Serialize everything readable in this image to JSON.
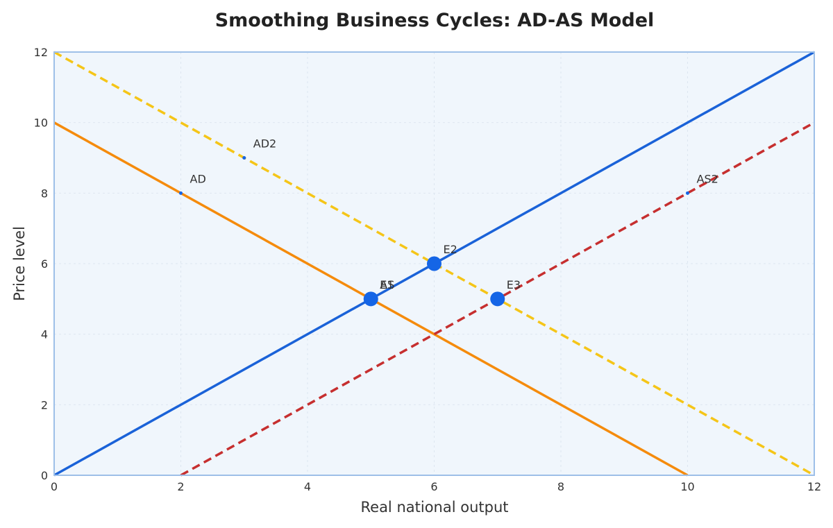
{
  "chart_data": {
    "type": "line",
    "title": "Smoothing Business Cycles: AD-AS Model",
    "xlabel": "Real national output",
    "ylabel": "Price level",
    "xlim": [
      0,
      12
    ],
    "ylim": [
      0,
      12
    ],
    "xticks": [
      "0",
      "2",
      "4",
      "6",
      "8",
      "10",
      "12"
    ],
    "yticks": [
      "0",
      "2",
      "4",
      "6",
      "8",
      "10",
      "12"
    ],
    "xtick_values": [
      0,
      2,
      4,
      6,
      8,
      10,
      12
    ],
    "ytick_values": [
      0,
      2,
      4,
      6,
      8,
      10,
      12
    ],
    "grid": true,
    "colors": {
      "plot_background": "#f0f6fc",
      "plot_border": "#9dbfe8",
      "grid": "#dde6f0",
      "point": "#1565e6",
      "AD": "#f58b0c",
      "AD2": "#f5c518",
      "AS": "#1a62d8",
      "AS2": "#c62f2f"
    },
    "series": [
      {
        "name": "AD",
        "x": [
          0,
          10
        ],
        "y": [
          10,
          0
        ],
        "color": "#f58b0c",
        "dashed": false,
        "label_point": [
          2,
          8
        ]
      },
      {
        "name": "AD2",
        "x": [
          0,
          12
        ],
        "y": [
          12,
          0
        ],
        "color": "#f5c518",
        "dashed": true,
        "label_point": [
          3,
          9
        ]
      },
      {
        "name": "AS",
        "x": [
          0,
          12
        ],
        "y": [
          0,
          12
        ],
        "color": "#1a62d8",
        "dashed": false,
        "label_point": [
          5,
          5
        ]
      },
      {
        "name": "AS2",
        "x": [
          2,
          12
        ],
        "y": [
          0,
          10
        ],
        "color": "#c62f2f",
        "dashed": true,
        "label_point": [
          10,
          8
        ]
      }
    ],
    "points": [
      {
        "name": "E1",
        "x": 5,
        "y": 5
      },
      {
        "name": "E2",
        "x": 6,
        "y": 6
      },
      {
        "name": "E3",
        "x": 7,
        "y": 5
      }
    ]
  }
}
